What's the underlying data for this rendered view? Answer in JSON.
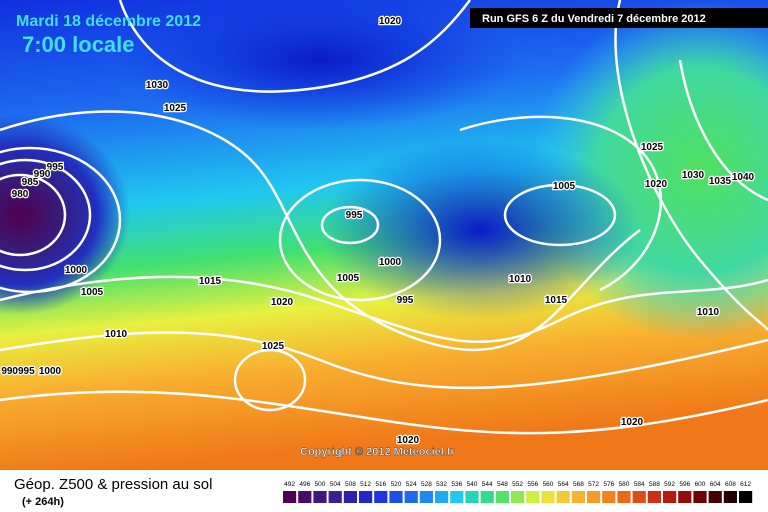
{
  "header": {
    "date": "Mardi 18 décembre 2012",
    "time": "7:00 locale",
    "run": "Run GFS 6 Z du Vendredi 7 décembre 2012"
  },
  "copyright": "Copyright © 2012 Meteociel.fr",
  "footer": {
    "title": "Géop. Z500 & pression au sol",
    "lead": "(+ 264h)"
  },
  "scale": [
    "492",
    "496",
    "500",
    "504",
    "508",
    "512",
    "516",
    "520",
    "524",
    "528",
    "532",
    "536",
    "540",
    "544",
    "548",
    "552",
    "556",
    "560",
    "564",
    "568",
    "572",
    "576",
    "580",
    "584",
    "588",
    "592",
    "596",
    "600",
    "604",
    "608",
    "612"
  ],
  "isobar_labels": [
    "1020",
    "1030",
    "1025",
    "995",
    "990",
    "985",
    "980",
    "1000",
    "1005",
    "1015",
    "1020",
    "1010",
    "1025",
    "990995",
    "1000",
    "995",
    "1005",
    "1000",
    "995",
    "1005",
    "1010",
    "1015",
    "1025",
    "1020",
    "1030",
    "1035",
    "1040",
    "1010",
    "1020",
    "1020"
  ]
}
